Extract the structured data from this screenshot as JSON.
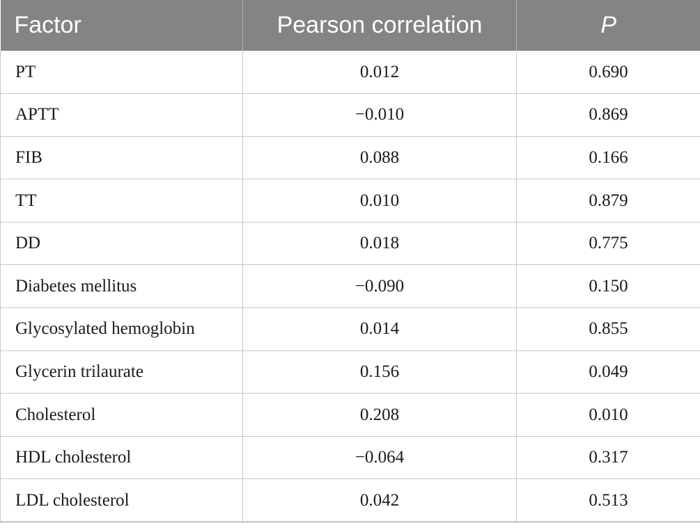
{
  "header": {
    "col_factor": "Factor",
    "col_pearson": "Pearson correlation",
    "col_p": "P"
  },
  "rows": [
    {
      "factor": "PT",
      "pearson": "0.012",
      "p": "0.690"
    },
    {
      "factor": "APTT",
      "pearson": "−0.010",
      "p": "0.869"
    },
    {
      "factor": "FIB",
      "pearson": "0.088",
      "p": "0.166"
    },
    {
      "factor": "TT",
      "pearson": "0.010",
      "p": "0.879"
    },
    {
      "factor": "DD",
      "pearson": "0.018",
      "p": "0.775"
    },
    {
      "factor": "Diabetes mellitus",
      "pearson": "−0.090",
      "p": "0.150"
    },
    {
      "factor": "Glycosylated hemoglobin",
      "pearson": "0.014",
      "p": "0.855"
    },
    {
      "factor": "Glycerin trilaurate",
      "pearson": "0.156",
      "p": "0.049"
    },
    {
      "factor": "Cholesterol",
      "pearson": "0.208",
      "p": "0.010"
    },
    {
      "factor": "HDL cholesterol",
      "pearson": "−0.064",
      "p": "0.317"
    },
    {
      "factor": "LDL cholesterol",
      "pearson": "0.042",
      "p": "0.513"
    }
  ],
  "colors": {
    "header_bg": "#848483",
    "header_text": "#ffffff",
    "grid": "#c8c8c8"
  }
}
